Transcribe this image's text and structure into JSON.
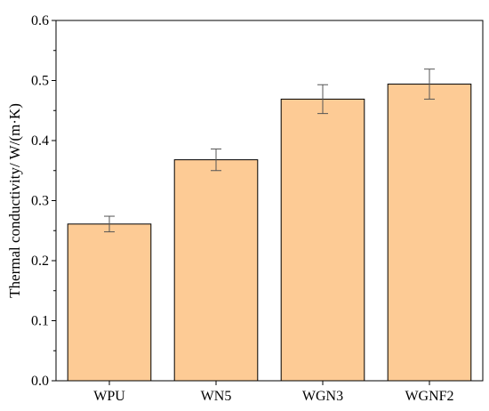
{
  "chart_data": {
    "type": "bar",
    "title": "",
    "xlabel": "",
    "ylabel": "Thermal conductivity/ W/(m·K)",
    "categories": [
      "WPU",
      "WN5",
      "WGN3",
      "WGNF2"
    ],
    "values": [
      0.261,
      0.368,
      0.469,
      0.494
    ],
    "errors": [
      0.013,
      0.018,
      0.024,
      0.025
    ],
    "ylim": [
      0,
      0.6
    ],
    "yticks": [
      "0.0",
      "0.1",
      "0.2",
      "0.3",
      "0.4",
      "0.5",
      "0.6"
    ],
    "grid": false,
    "legend": "none",
    "colors": {
      "bar_fill": "#fdcb95",
      "bar_stroke": "#000000",
      "error_bar": "#555555"
    }
  }
}
